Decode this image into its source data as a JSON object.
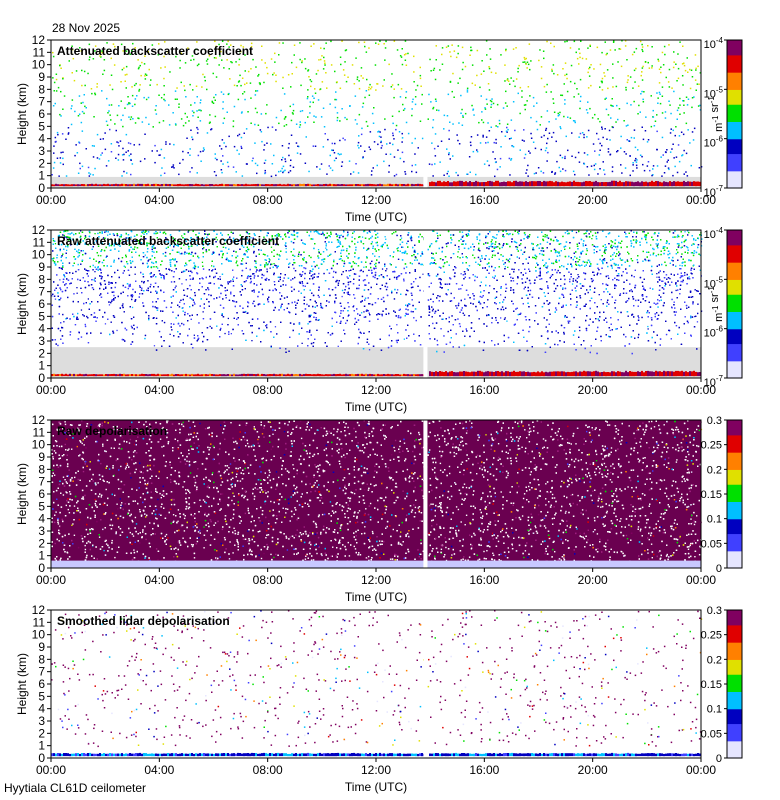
{
  "figure": {
    "date": "28 Nov 2025",
    "footer": "Hyytiala CL61D ceilometer"
  },
  "colors": {
    "noise_gray": "#dddddd",
    "gap_white": "#ffffff",
    "cmap": [
      "#e6e6ff",
      "#4040ff",
      "#0000c0",
      "#00c0ff",
      "#00e000",
      "#e0e000",
      "#ff8000",
      "#e00000",
      "#800060"
    ]
  },
  "chart_data": [
    {
      "type": "heatmap",
      "title": "Attenuated backscatter coefficient",
      "xlabel": "Time (UTC)",
      "ylabel": "Height (km)",
      "xticks": [
        "00:00",
        "04:00",
        "08:00",
        "12:00",
        "16:00",
        "20:00",
        "00:00"
      ],
      "yticks": [
        0,
        1,
        2,
        3,
        4,
        5,
        6,
        7,
        8,
        9,
        10,
        11,
        12
      ],
      "ylim": [
        0,
        12
      ],
      "xlim_hours": [
        0,
        24
      ],
      "data_gap_hours": [
        13.75,
        13.9
      ],
      "colorbar": {
        "scale": "log",
        "ticks": [
          "10^-7",
          "10^-6",
          "10^-5",
          "10^-4"
        ],
        "label": "m^-1 sr^-1",
        "range": [
          1e-07,
          0.0001
        ]
      },
      "noise_floor_km": 0.9,
      "surface_layer_km": [
        0.15,
        0.7
      ],
      "sparse_signal": true
    },
    {
      "type": "heatmap",
      "title": "Raw attenuated backscatter coefficient",
      "xlabel": "Time (UTC)",
      "ylabel": "Height (km)",
      "xticks": [
        "00:00",
        "04:00",
        "08:00",
        "12:00",
        "16:00",
        "20:00",
        "00:00"
      ],
      "yticks": [
        0,
        1,
        2,
        3,
        4,
        5,
        6,
        7,
        8,
        9,
        10,
        11,
        12
      ],
      "ylim": [
        0,
        12
      ],
      "xlim_hours": [
        0,
        24
      ],
      "data_gap_hours": [
        13.75,
        13.9
      ],
      "colorbar": {
        "scale": "log",
        "ticks": [
          "10^-7",
          "10^-6",
          "10^-5",
          "10^-4"
        ],
        "label": "m^-1 sr^-1",
        "range": [
          1e-07,
          0.0001
        ]
      },
      "noise_floor_km": 2.5,
      "surface_layer_km": [
        0.15,
        0.7
      ],
      "dense_noise": true
    },
    {
      "type": "heatmap",
      "title": "Raw depolarisation",
      "xlabel": "Time (UTC)",
      "ylabel": "Height (km)",
      "xticks": [
        "00:00",
        "04:00",
        "08:00",
        "12:00",
        "16:00",
        "20:00",
        "00:00"
      ],
      "yticks": [
        0,
        1,
        2,
        3,
        4,
        5,
        6,
        7,
        8,
        9,
        10,
        11,
        12
      ],
      "ylim": [
        0,
        12
      ],
      "xlim_hours": [
        0,
        24
      ],
      "data_gap_hours": [
        13.75,
        13.9
      ],
      "colorbar": {
        "scale": "linear",
        "ticks": [
          "0",
          "0.05",
          "0.1",
          "0.15",
          "0.2",
          "0.25",
          "0.3"
        ],
        "range": [
          0,
          0.3
        ]
      },
      "dense_noise": true
    },
    {
      "type": "heatmap",
      "title": "Smoothed lidar depolarisation",
      "xlabel": "Time (UTC)",
      "ylabel": "Height (km)",
      "xticks": [
        "00:00",
        "04:00",
        "08:00",
        "12:00",
        "16:00",
        "20:00",
        "00:00"
      ],
      "yticks": [
        0,
        1,
        2,
        3,
        4,
        5,
        6,
        7,
        8,
        9,
        10,
        11,
        12
      ],
      "ylim": [
        0,
        12
      ],
      "xlim_hours": [
        0,
        24
      ],
      "data_gap_hours": [
        13.75,
        13.9
      ],
      "colorbar": {
        "scale": "linear",
        "ticks": [
          "0",
          "0.05",
          "0.1",
          "0.15",
          "0.2",
          "0.25",
          "0.3"
        ],
        "range": [
          0,
          0.3
        ]
      },
      "surface_layer_km": [
        0.15,
        0.9
      ],
      "sparse_signal": true
    }
  ]
}
